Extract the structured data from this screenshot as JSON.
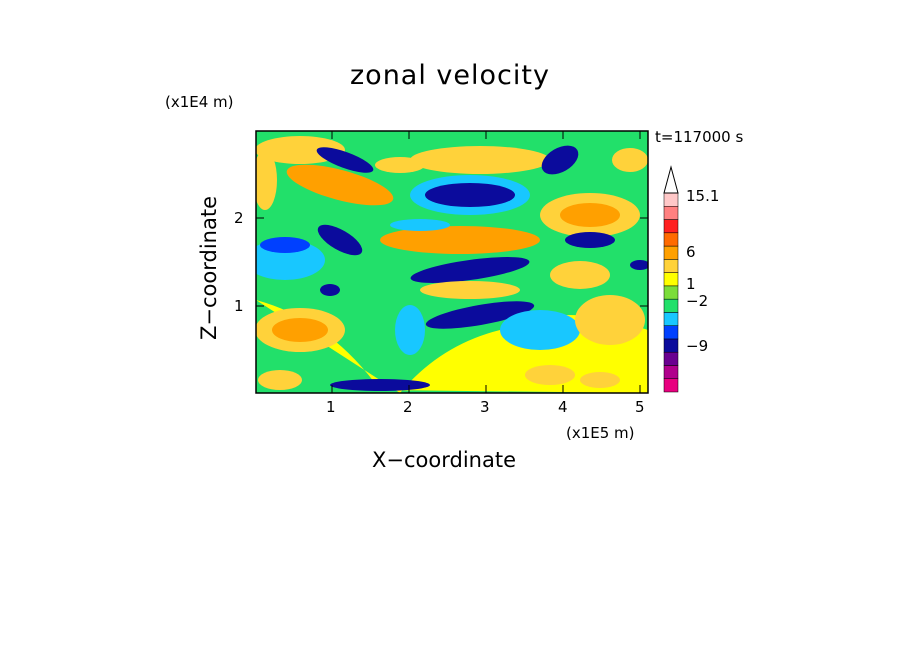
{
  "chart_data": {
    "type": "heatmap",
    "title": "zonal velocity",
    "xlabel": "X−coordinate",
    "ylabel": "Z−coordinate",
    "x_unit": "(x1E5 m)",
    "z_unit": "(x1E4 m)",
    "time_label": "t=117000 s",
    "xlim": [
      0,
      5.15
    ],
    "ylim": [
      0,
      2.95
    ],
    "x_ticks": [
      "1",
      "2",
      "3",
      "4",
      "5"
    ],
    "y_ticks": [
      "1",
      "2"
    ],
    "colorbar": {
      "labels": [
        "15.1",
        "6",
        "1",
        "−2",
        "−9"
      ],
      "colors": [
        "#e8007f",
        "#b0008c",
        "#6a0090",
        "#0b0b9c",
        "#0040ff",
        "#18c7ff",
        "#22e06a",
        "#7bdd3a",
        "#ffff00",
        "#ffd23a",
        "#ffa000",
        "#ff6a00",
        "#ff2020",
        "#ff8080",
        "#ffc8c8"
      ],
      "extend_top": true
    },
    "plot_background": "#22e06a"
  }
}
